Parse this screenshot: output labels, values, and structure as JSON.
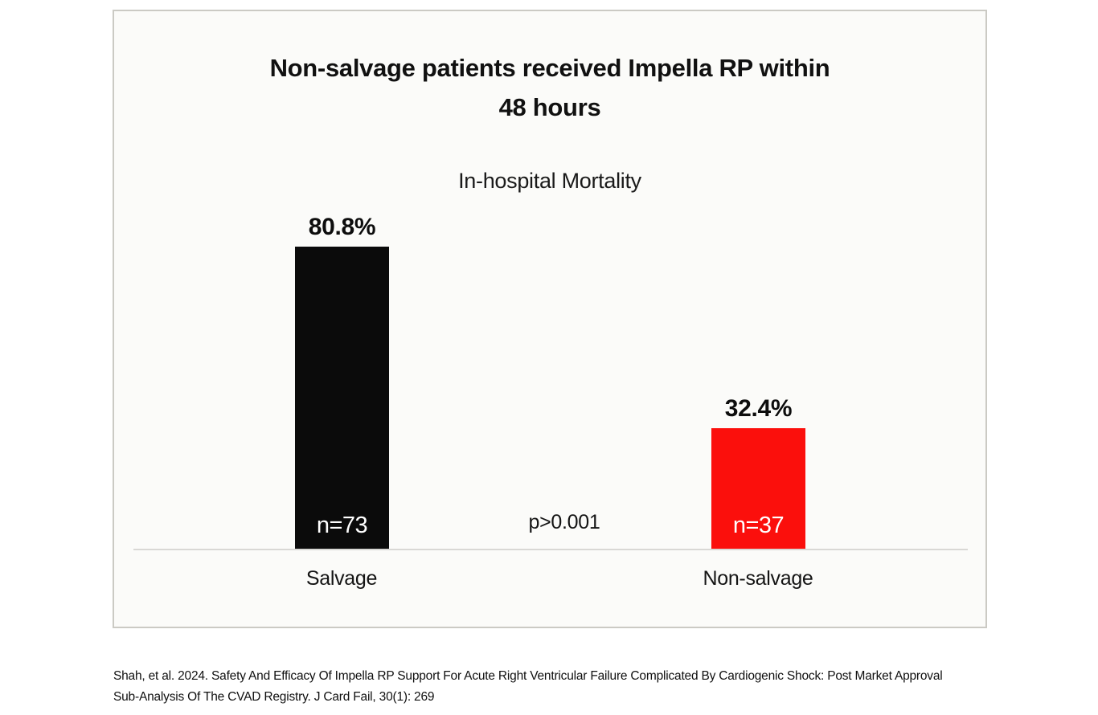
{
  "panel": {
    "background": "#fbfbf9",
    "border_color": "#cbcac4"
  },
  "chart_data": {
    "type": "bar",
    "title": "Non-salvage patients received Impella RP within 48 hours",
    "title_lines": [
      "Non-salvage patients received Impella RP within",
      "48 hours"
    ],
    "subtitle": "In-hospital Mortality",
    "categories": [
      "Salvage",
      "Non-salvage"
    ],
    "values": [
      80.8,
      32.4
    ],
    "value_labels": [
      "80.8%",
      "32.4%"
    ],
    "bar_inner_labels": [
      "n=73",
      "n=37"
    ],
    "bar_colors": [
      "#0b0b0b",
      "#fb0f0c"
    ],
    "bar_inner_label_color": "#ffffff",
    "annotation": "p>0.001",
    "xlabel": "",
    "ylabel": "",
    "ylim": [
      0,
      100
    ],
    "grid": false,
    "legend": false,
    "axis_color": "#d9d8d5",
    "text_color": "#151515"
  },
  "citation": {
    "line1": "Shah, et al. 2024. Safety And Efficacy Of Impella RP Support For Acute Right Ventricular Failure Complicated By Cardiogenic Shock: Post Market Approval",
    "line2": "Sub-Analysis Of The CVAD Registry. J Card Fail, 30(1): 269"
  }
}
